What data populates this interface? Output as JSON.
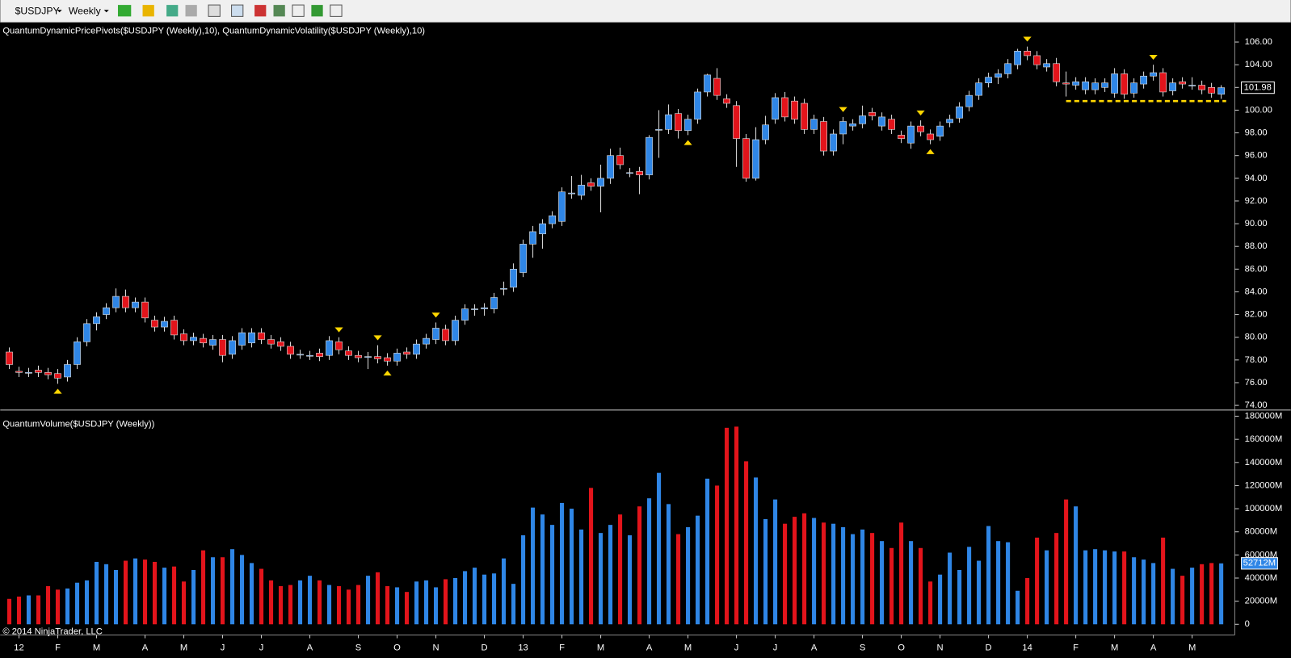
{
  "toolbar": {
    "symbol": "$USDJPY",
    "interval": "Weekly"
  },
  "copyright": "© 2014 NinjaTrader, LLC",
  "chart_data": [
    {
      "type": "candlestick",
      "title": "QuantumDynamicPricePivots($USDJPY (Weekly),10), QuantumDynamicVolatility($USDJPY (Weekly),10)",
      "up_color": "#2f86e6",
      "down_color": "#e3141b",
      "open": [
        78.7,
        77.0,
        76.9,
        77.1,
        76.9,
        76.8,
        76.5,
        77.6,
        79.6,
        81.2,
        82.0,
        82.6,
        83.6,
        82.6,
        83.1,
        81.5,
        80.9,
        81.5,
        80.3,
        79.7,
        79.9,
        79.3,
        79.8,
        78.5,
        79.3,
        79.5,
        80.4,
        79.8,
        79.6,
        79.2,
        78.5,
        78.4,
        78.6,
        78.4,
        79.6,
        78.8,
        78.4,
        78.3,
        78.3,
        78.2,
        77.9,
        78.7,
        78.5,
        79.4,
        79.8,
        80.7,
        79.7,
        81.5,
        82.5,
        82.5,
        82.5,
        84.3,
        84.4,
        85.7,
        88.2,
        89.1,
        90.0,
        90.2,
        92.7,
        92.5,
        93.6,
        93.3,
        94.0,
        96.0,
        94.5,
        94.6,
        94.3,
        98.3,
        98.3,
        99.7,
        98.2,
        99.2,
        101.6,
        102.8,
        101.0,
        100.4,
        97.5,
        94.0,
        97.4,
        99.2,
        101.1,
        100.8,
        100.6,
        98.3,
        99.0,
        96.4,
        97.9,
        98.6,
        98.8,
        99.8,
        98.6,
        99.2,
        97.8,
        97.1,
        98.6,
        97.9,
        97.7,
        98.9,
        99.3,
        100.3,
        101.3,
        102.4,
        102.9,
        103.2,
        104.0,
        105.2,
        104.8,
        103.8,
        104.1,
        102.4,
        102.2,
        101.8,
        101.8,
        102.0,
        101.5,
        103.2,
        101.5,
        102.3,
        103.0,
        103.3,
        101.7,
        102.5,
        102.2,
        102.2,
        102.0,
        101.4
      ],
      "high": [
        79.1,
        77.4,
        77.3,
        77.5,
        77.3,
        77.2,
        78.0,
        80.0,
        81.6,
        82.2,
        83.0,
        84.3,
        84.2,
        83.5,
        83.5,
        81.9,
        81.8,
        81.9,
        80.7,
        80.4,
        80.3,
        80.2,
        80.2,
        80.1,
        80.8,
        80.8,
        80.8,
        80.2,
        80.0,
        79.6,
        78.9,
        78.8,
        79.0,
        80.1,
        80.0,
        79.2,
        78.8,
        78.7,
        79.3,
        78.6,
        79.0,
        79.1,
        79.8,
        80.3,
        81.3,
        81.1,
        81.9,
        82.9,
        82.9,
        83.0,
        83.9,
        84.9,
        86.5,
        88.6,
        89.8,
        90.4,
        91.1,
        93.2,
        94.2,
        94.3,
        94.0,
        95.2,
        96.6,
        96.7,
        94.9,
        95.0,
        97.8,
        100.0,
        100.5,
        100.1,
        99.6,
        101.9,
        103.2,
        103.7,
        101.4,
        100.8,
        97.9,
        98.5,
        99.5,
        101.5,
        101.6,
        101.2,
        101.0,
        99.6,
        99.4,
        98.3,
        99.4,
        99.2,
        100.4,
        100.2,
        99.8,
        99.6,
        98.2,
        99.0,
        99.1,
        98.3,
        99.0,
        99.6,
        100.7,
        101.7,
        102.8,
        103.3,
        103.6,
        104.5,
        105.4,
        105.6,
        105.2,
        104.5,
        104.6,
        103.4,
        102.9,
        102.9,
        102.8,
        102.8,
        103.7,
        103.6,
        102.8,
        103.4,
        104.0,
        103.7,
        102.8,
        102.9,
        102.9,
        102.6,
        102.4,
        102.2
      ],
      "low": [
        77.2,
        76.5,
        76.5,
        76.5,
        76.3,
        75.9,
        76.1,
        77.2,
        79.2,
        80.6,
        81.6,
        82.2,
        82.2,
        82.2,
        81.3,
        80.5,
        80.5,
        79.8,
        79.3,
        79.3,
        79.1,
        78.9,
        77.8,
        78.1,
        78.9,
        79.1,
        79.4,
        79.0,
        78.8,
        78.1,
        78.1,
        78.0,
        77.9,
        78.0,
        78.5,
        78.0,
        77.8,
        77.2,
        77.7,
        77.5,
        77.5,
        78.1,
        78.1,
        79.0,
        79.4,
        79.3,
        79.3,
        81.1,
        81.9,
        81.9,
        82.1,
        83.7,
        84.0,
        85.3,
        87.0,
        87.8,
        89.6,
        89.8,
        92.2,
        92.1,
        92.9,
        91.0,
        93.5,
        94.8,
        94.1,
        92.6,
        93.9,
        95.8,
        97.9,
        97.5,
        97.8,
        98.8,
        101.2,
        100.9,
        100.2,
        95.0,
        93.7,
        93.8,
        97.0,
        98.8,
        99.0,
        98.8,
        97.9,
        97.9,
        96.0,
        96.0,
        97.0,
        98.2,
        98.4,
        99.1,
        98.2,
        97.9,
        97.1,
        96.6,
        97.7,
        97.0,
        97.3,
        98.5,
        98.9,
        99.9,
        100.9,
        102.0,
        102.3,
        102.8,
        103.6,
        104.4,
        103.6,
        103.4,
        102.1,
        101.2,
        101.8,
        101.4,
        101.4,
        101.6,
        101.1,
        101.0,
        101.1,
        101.9,
        102.6,
        101.2,
        101.3,
        101.9,
        101.8,
        101.4,
        101.1,
        101.0
      ],
      "close": [
        77.6,
        76.9,
        76.9,
        76.9,
        76.7,
        76.4,
        77.6,
        79.6,
        81.2,
        81.8,
        82.6,
        83.6,
        82.6,
        83.1,
        81.7,
        80.9,
        81.4,
        80.2,
        79.7,
        80.0,
        79.5,
        79.8,
        78.4,
        79.7,
        80.4,
        80.4,
        79.8,
        79.4,
        79.2,
        78.5,
        78.5,
        78.4,
        78.3,
        79.7,
        78.9,
        78.4,
        78.2,
        78.3,
        78.1,
        77.9,
        78.6,
        78.5,
        79.4,
        79.9,
        80.8,
        79.7,
        81.5,
        82.5,
        82.5,
        82.6,
        83.5,
        84.3,
        86.0,
        88.2,
        89.3,
        90.0,
        90.7,
        92.8,
        92.7,
        93.4,
        93.3,
        94.0,
        96.0,
        95.2,
        94.5,
        94.3,
        97.6,
        98.3,
        99.6,
        98.2,
        99.2,
        101.6,
        103.1,
        101.3,
        100.6,
        97.5,
        94.0,
        97.4,
        98.7,
        101.1,
        99.4,
        99.2,
        98.3,
        99.2,
        96.4,
        97.9,
        99.0,
        98.8,
        99.5,
        99.5,
        99.4,
        98.3,
        97.5,
        98.6,
        98.1,
        97.4,
        98.6,
        99.2,
        100.3,
        101.3,
        102.4,
        102.9,
        103.2,
        104.1,
        105.2,
        104.8,
        104.0,
        104.1,
        102.5,
        102.3,
        102.5,
        102.5,
        102.4,
        102.4,
        103.2,
        101.4,
        102.4,
        103.0,
        103.3,
        101.6,
        102.4,
        102.3,
        102.2,
        101.8,
        101.5,
        101.98
      ],
      "pivot_highs": [
        34,
        38,
        44,
        86,
        94,
        105,
        118
      ],
      "pivot_lows": [
        5,
        39,
        70,
        95
      ],
      "pivot_color": "#ffd700",
      "support": {
        "value": 100.8,
        "from": 109
      },
      "last_price": {
        "value": 101.98,
        "label": "101.98"
      },
      "ylim": [
        73.7,
        107.6
      ],
      "yticks": [
        {
          "value": 74,
          "label": "74.00"
        },
        {
          "value": 76,
          "label": "76.00"
        },
        {
          "value": 78,
          "label": "78.00"
        },
        {
          "value": 80,
          "label": "80.00"
        },
        {
          "value": 82,
          "label": "82.00"
        },
        {
          "value": 84,
          "label": "84.00"
        },
        {
          "value": 86,
          "label": "86.00"
        },
        {
          "value": 88,
          "label": "88.00"
        },
        {
          "value": 90,
          "label": "90.00"
        },
        {
          "value": 92,
          "label": "92.00"
        },
        {
          "value": 94,
          "label": "94.00"
        },
        {
          "value": 96,
          "label": "96.00"
        },
        {
          "value": 98,
          "label": "98.00"
        },
        {
          "value": 100,
          "label": "100.00"
        },
        {
          "value": 102,
          "label": "102.00"
        },
        {
          "value": 104,
          "label": "104.00"
        },
        {
          "value": 106,
          "label": "106.00"
        }
      ]
    },
    {
      "type": "bar",
      "title": "QuantumVolume($USDJPY (Weekly))",
      "categories": [
        null,
        "12",
        null,
        null,
        null,
        "F",
        null,
        null,
        null,
        "M",
        null,
        null,
        null,
        null,
        "A",
        null,
        null,
        null,
        "M",
        null,
        null,
        null,
        "J",
        null,
        null,
        null,
        "J",
        null,
        null,
        null,
        null,
        "A",
        null,
        null,
        null,
        null,
        "S",
        null,
        null,
        null,
        "O",
        null,
        null,
        null,
        "N",
        null,
        null,
        null,
        null,
        "D",
        null,
        null,
        null,
        "13",
        null,
        null,
        null,
        "F",
        null,
        null,
        null,
        "M",
        null,
        null,
        null,
        null,
        "A",
        null,
        null,
        null,
        "M",
        null,
        null,
        null,
        null,
        "J",
        null,
        null,
        null,
        "J",
        null,
        null,
        null,
        "A",
        null,
        null,
        null,
        null,
        "S",
        null,
        null,
        null,
        "O",
        null,
        null,
        null,
        "N",
        null,
        null,
        null,
        null,
        "D",
        null,
        null,
        null,
        "14",
        null,
        null,
        null,
        null,
        "F",
        null,
        null,
        null,
        "M",
        null,
        null,
        null,
        "A",
        null,
        null,
        null,
        "M",
        null,
        null,
        null
      ],
      "values": [
        22000,
        24000,
        25000,
        25000,
        33000,
        30000,
        31000,
        36000,
        38000,
        54000,
        52000,
        47000,
        55000,
        57000,
        56000,
        54000,
        49000,
        50000,
        37000,
        47000,
        64000,
        58000,
        58000,
        65000,
        60000,
        53000,
        48000,
        38000,
        33000,
        34000,
        38000,
        42000,
        38000,
        34000,
        33000,
        30000,
        34000,
        42000,
        45000,
        33000,
        32000,
        28000,
        37000,
        38000,
        32000,
        39000,
        40000,
        46000,
        49000,
        43000,
        44000,
        57000,
        35000,
        77000,
        101000,
        95000,
        86000,
        105000,
        100000,
        82000,
        118000,
        79000,
        86000,
        95000,
        77000,
        102000,
        109000,
        131000,
        104000,
        78000,
        84000,
        94000,
        126000,
        120000,
        170000,
        171000,
        141000,
        127000,
        91000,
        108000,
        87000,
        93000,
        96000,
        92000,
        88000,
        87000,
        84000,
        78000,
        82000,
        79000,
        72000,
        66000,
        88000,
        72000,
        66000,
        37000,
        43000,
        62000,
        47000,
        67000,
        55000,
        85000,
        72000,
        71000,
        29000,
        40000,
        75000,
        64000,
        79000,
        108000,
        102000,
        64000,
        65000,
        64000,
        63000,
        63000,
        58000,
        56000,
        53000,
        75000,
        48000,
        42000,
        49000,
        52000,
        53000,
        52712
      ],
      "last_value": {
        "value": 52712,
        "label": "52712M"
      },
      "ylim": [
        -7800,
        184300
      ],
      "yticks": [
        0,
        {
          "value": 20000,
          "label": "20000M"
        },
        {
          "value": 40000,
          "label": "40000M"
        },
        {
          "value": 60000,
          "label": "60000M"
        },
        {
          "value": 80000,
          "label": "80000M"
        },
        {
          "value": 100000,
          "label": "100000M"
        },
        {
          "value": 120000,
          "label": "120000M"
        },
        {
          "value": 140000,
          "label": "140000M"
        },
        {
          "value": 160000,
          "label": "160000M"
        },
        {
          "value": 180000,
          "label": "180000M"
        }
      ]
    }
  ]
}
